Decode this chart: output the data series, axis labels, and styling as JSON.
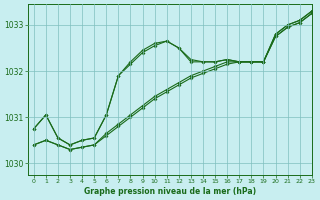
{
  "background_color": "#c8eef0",
  "grid_color": "#7fbfbf",
  "line_color": "#1a6b1a",
  "title": "Graphe pression niveau de la mer (hPa)",
  "xlim": [
    -0.5,
    23
  ],
  "ylim": [
    1029.75,
    1033.45
  ],
  "yticks": [
    1030,
    1031,
    1032,
    1033
  ],
  "xticks": [
    0,
    1,
    2,
    3,
    4,
    5,
    6,
    7,
    8,
    9,
    10,
    11,
    12,
    13,
    14,
    15,
    16,
    17,
    18,
    19,
    20,
    21,
    22,
    23
  ],
  "line1": [
    1030.75,
    1031.05,
    1030.55,
    1030.4,
    1030.5,
    1030.55,
    1031.05,
    1031.9,
    1032.2,
    1032.45,
    1032.6,
    1032.65,
    1032.5,
    1032.2,
    1032.2,
    1032.2,
    1032.25,
    1032.2,
    1032.2,
    1032.2,
    1032.8,
    1033.0,
    1033.1,
    1033.3
  ],
  "line2": [
    1030.75,
    1031.05,
    1030.55,
    1030.4,
    1030.5,
    1030.55,
    1031.05,
    1031.9,
    1032.15,
    1032.4,
    1032.55,
    1032.65,
    1032.5,
    1032.25,
    1032.2,
    1032.2,
    1032.25,
    1032.2,
    1032.2,
    1032.2,
    1032.8,
    1033.0,
    1033.1,
    1033.3
  ],
  "line3_linear": [
    1030.4,
    1030.5,
    1030.4,
    1030.3,
    1030.35,
    1030.4,
    1030.6,
    1030.8,
    1031.0,
    1031.2,
    1031.4,
    1031.55,
    1031.7,
    1031.85,
    1031.95,
    1032.05,
    1032.15,
    1032.2,
    1032.2,
    1032.2,
    1032.75,
    1032.95,
    1033.05,
    1033.25
  ],
  "line4_linear": [
    1030.4,
    1030.5,
    1030.4,
    1030.3,
    1030.35,
    1030.4,
    1030.65,
    1030.85,
    1031.05,
    1031.25,
    1031.45,
    1031.6,
    1031.75,
    1031.9,
    1032.0,
    1032.1,
    1032.2,
    1032.2,
    1032.2,
    1032.2,
    1032.75,
    1032.95,
    1033.05,
    1033.25
  ]
}
